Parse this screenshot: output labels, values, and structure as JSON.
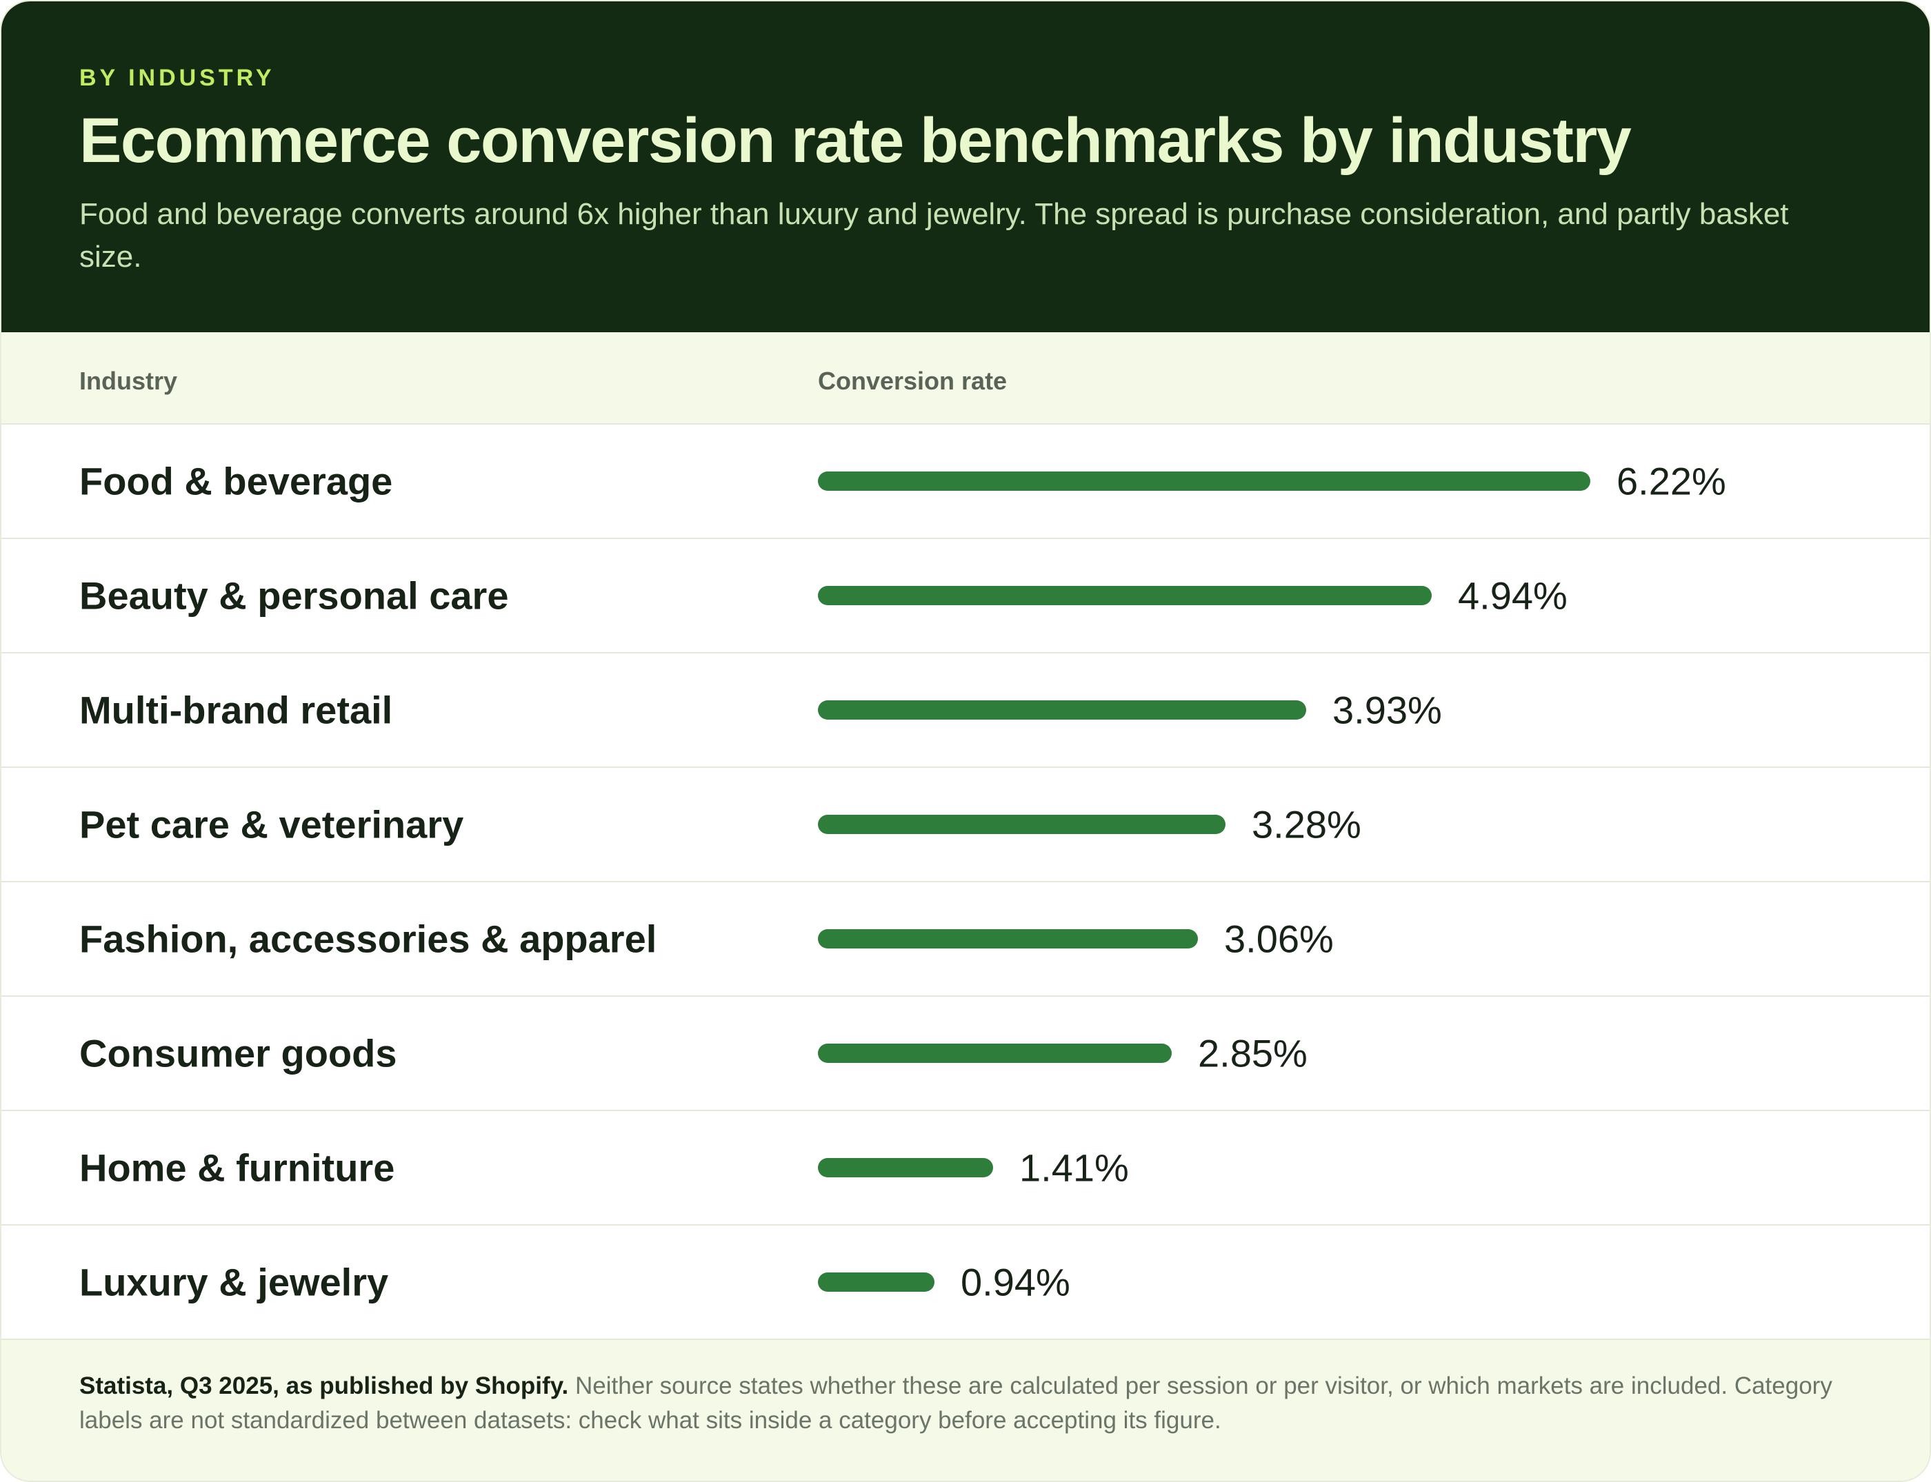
{
  "eyebrow": "BY INDUSTRY",
  "title": "Ecommerce conversion rate benchmarks by industry",
  "subtitle": "Food and beverage converts around 6x higher than luxury and jewelry. The spread is purchase consideration, and partly basket size.",
  "columns": {
    "industry": "Industry",
    "rate": "Conversion rate"
  },
  "colors": {
    "header_bg": "#132b12",
    "eyebrow": "#c3ea63",
    "title": "#eaf8cd",
    "bar": "#2e7d3a",
    "band_bg": "#f4f9e8"
  },
  "chart_data": {
    "type": "bar",
    "orientation": "horizontal",
    "categories": [
      "Food & beverage",
      "Beauty & personal care",
      "Multi-brand retail",
      "Pet care & veterinary",
      "Fashion, accessories & apparel",
      "Consumer goods",
      "Home & furniture",
      "Luxury & jewelry"
    ],
    "values": [
      6.22,
      4.94,
      3.93,
      3.28,
      3.06,
      2.85,
      1.41,
      0.94
    ],
    "value_labels": [
      "6.22%",
      "4.94%",
      "3.93%",
      "3.28%",
      "3.06%",
      "2.85%",
      "1.41%",
      "0.94%"
    ],
    "unit": "%",
    "xlim": [
      0,
      6.22
    ],
    "grid": false,
    "legend": "none"
  },
  "footer": {
    "source": "Statista, Q3 2025, as published by Shopify.",
    "note": "Neither source states whether these are calculated per session or per visitor, or which markets are included. Category labels are not standardized between datasets: check what sits inside a category before accepting its figure."
  }
}
